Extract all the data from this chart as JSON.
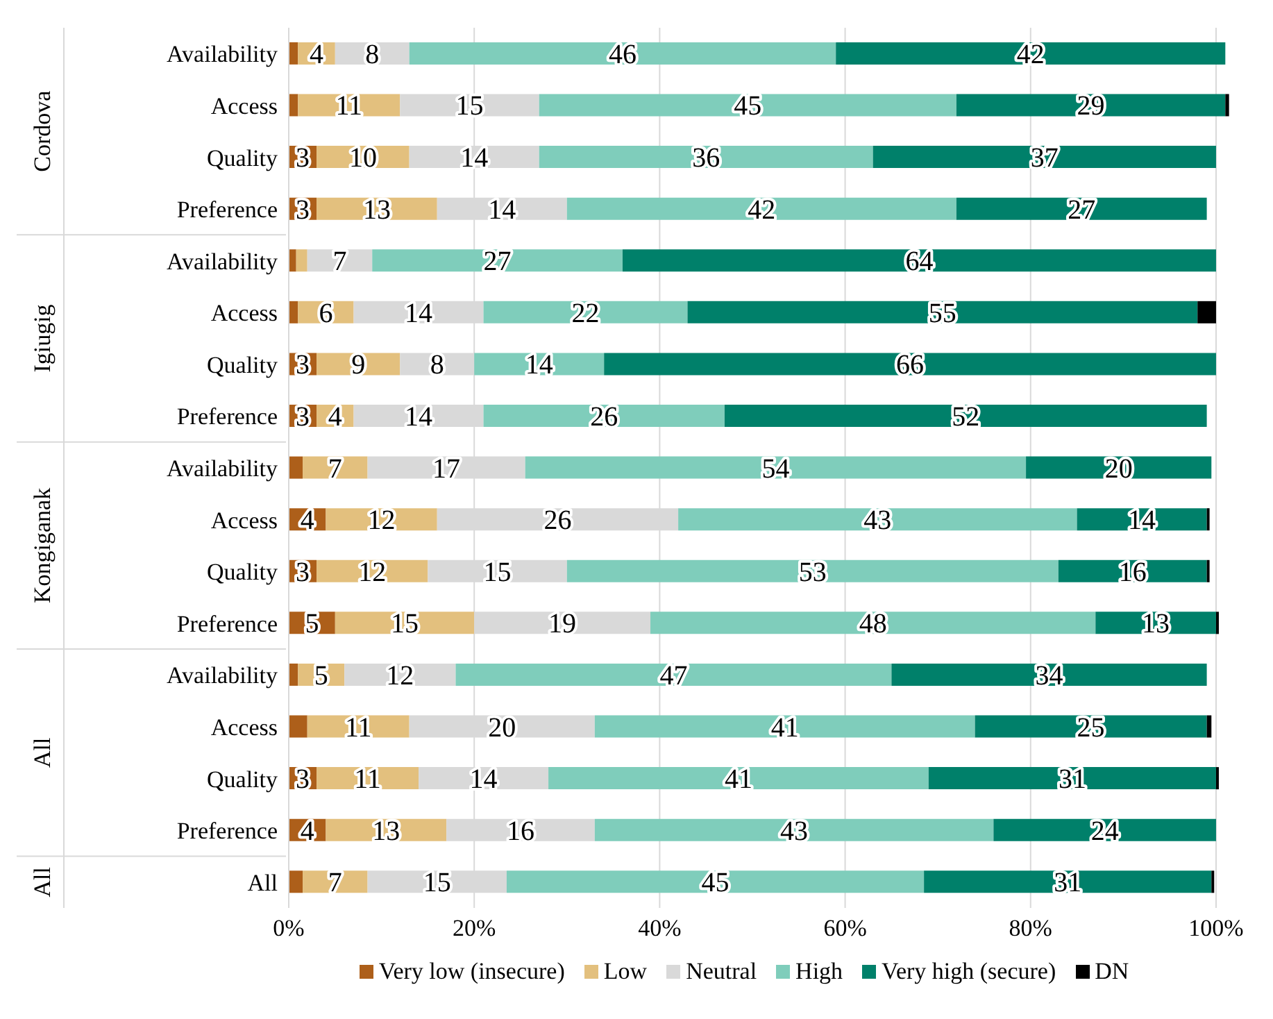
{
  "chart_data": {
    "type": "bar",
    "orientation": "horizontal",
    "stacked": true,
    "categories": [
      "Availability",
      "Access",
      "Quality",
      "Preference",
      "Availability",
      "Access",
      "Quality",
      "Preference",
      "Availability",
      "Access",
      "Quality",
      "Preference",
      "Availability",
      "Access",
      "Quality",
      "Preference",
      "All"
    ],
    "annotations": [
      "Cordova",
      "Igiugig",
      "Kongiganak",
      "All",
      "All"
    ],
    "series": [
      {
        "name": "Very low (insecure)",
        "color": "#ad5f1a",
        "values": [
          1,
          1,
          3,
          3,
          0.8,
          1,
          3,
          3,
          1.5,
          4,
          3,
          5,
          1,
          2,
          3,
          4,
          1.5
        ],
        "value_labels": [
          null,
          null,
          "3",
          "3",
          null,
          null,
          "3",
          "3",
          null,
          "4",
          "3",
          "5",
          null,
          null,
          "3",
          "4",
          null
        ]
      },
      {
        "name": "Low",
        "color": "#e3c07e",
        "values": [
          4,
          11,
          10,
          13,
          1.2,
          6,
          9,
          4,
          7,
          12,
          12,
          15,
          5,
          11,
          11,
          13,
          7
        ],
        "value_labels": [
          "4",
          "11",
          "10",
          "13",
          null,
          "6",
          "9",
          "4",
          "7",
          "12",
          "12",
          "15",
          "5",
          "11",
          "11",
          "13",
          "7"
        ]
      },
      {
        "name": "Neutral",
        "color": "#d9d9d9",
        "values": [
          8,
          15,
          14,
          14,
          7,
          14,
          8,
          14,
          17,
          26,
          15,
          19,
          12,
          20,
          14,
          16,
          15
        ],
        "value_labels": [
          "8",
          "15",
          "14",
          "14",
          "7",
          "14",
          "8",
          "14",
          "17",
          "26",
          "15",
          "19",
          "12",
          "20",
          "14",
          "16",
          "15"
        ]
      },
      {
        "name": "High",
        "color": "#7fcdbb",
        "values": [
          46,
          45,
          36,
          42,
          27,
          22,
          14,
          26,
          54,
          43,
          53,
          48,
          47,
          41,
          41,
          43,
          45
        ],
        "value_labels": [
          "46",
          "45",
          "36",
          "42",
          "27",
          "22",
          "14",
          "26",
          "54",
          "43",
          "53",
          "48",
          "47",
          "41",
          "41",
          "43",
          "45"
        ]
      },
      {
        "name": "Very high (secure)",
        "color": "#00806a",
        "values": [
          42,
          29,
          37,
          27,
          64,
          55,
          66,
          52,
          20,
          14,
          16,
          13,
          34,
          25,
          31,
          24,
          31
        ],
        "value_labels": [
          "42",
          "29",
          "37",
          "27",
          "64",
          "55",
          "66",
          "52",
          "20",
          "14",
          "16",
          "13",
          "34",
          "25",
          "31",
          "24",
          "31"
        ]
      },
      {
        "name": "DN",
        "color": "#000000",
        "values": [
          0,
          0.4,
          0,
          0,
          0,
          2,
          0,
          0,
          0,
          0.3,
          0.3,
          0.3,
          0,
          0.5,
          0.3,
          0,
          0.3
        ],
        "value_labels": [
          null,
          null,
          null,
          null,
          null,
          null,
          null,
          null,
          null,
          null,
          null,
          null,
          null,
          null,
          null,
          null,
          null
        ]
      }
    ],
    "xlim": [
      0,
      101.5
    ],
    "xticks": [
      {
        "value": 0,
        "label": "0%"
      },
      {
        "value": 20,
        "label": "20%"
      },
      {
        "value": 40,
        "label": "40%"
      },
      {
        "value": 60,
        "label": "60%"
      },
      {
        "value": 80,
        "label": "80%"
      },
      {
        "value": 100,
        "label": "100%"
      }
    ],
    "grid": "x",
    "legend": "bottom"
  }
}
